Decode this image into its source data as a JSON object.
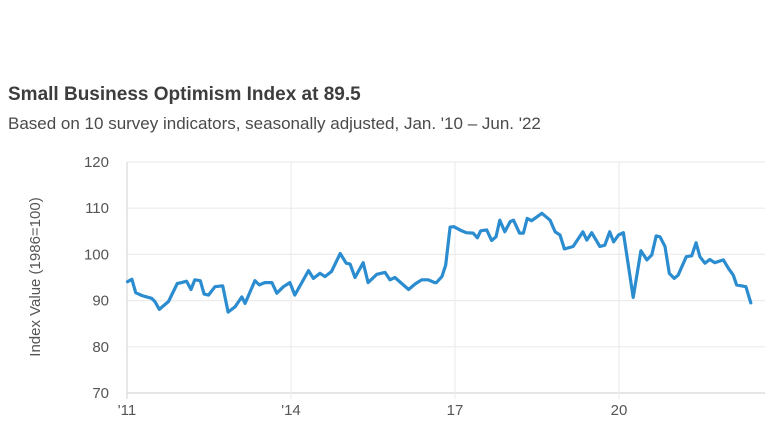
{
  "chart_data": {
    "type": "line",
    "title": "Small Business Optimism Index at 89.5",
    "subtitle": "Based on 10 survey indicators, seasonally adjusted, Jan. '10 – Jun. '22",
    "xlabel": "",
    "ylabel": "Index Value (1986=100)",
    "xlim": [
      2011,
      2022.45
    ],
    "ylim": [
      70,
      120
    ],
    "yticks": [
      70,
      80,
      90,
      100,
      110,
      120
    ],
    "xticks": [
      {
        "value": 2011,
        "label": "'11"
      },
      {
        "value": 2014,
        "label": "'14"
      },
      {
        "value": 2017,
        "label": "17"
      },
      {
        "value": 2020,
        "label": "20"
      }
    ],
    "grid": true,
    "line_color": "#2b8cd0",
    "x": [
      2011.01,
      2011.09,
      2011.16,
      2011.27,
      2011.36,
      2011.45,
      2011.51,
      2011.59,
      2011.76,
      2011.92,
      2012.0,
      2012.09,
      2012.17,
      2012.24,
      2012.34,
      2012.41,
      2012.49,
      2012.61,
      2012.75,
      2012.85,
      2012.98,
      2013.1,
      2013.16,
      2013.34,
      2013.42,
      2013.52,
      2013.65,
      2013.74,
      2013.86,
      2013.98,
      2014.07,
      2014.32,
      2014.41,
      2014.53,
      2014.62,
      2014.74,
      2014.9,
      2015.01,
      2015.08,
      2015.17,
      2015.32,
      2015.41,
      2015.57,
      2015.72,
      2015.81,
      2015.9,
      2016.15,
      2016.27,
      2016.39,
      2016.51,
      2016.63,
      2016.66,
      2016.76,
      2016.83,
      2016.91,
      2016.98,
      2017.12,
      2017.21,
      2017.33,
      2017.41,
      2017.47,
      2017.58,
      2017.67,
      2017.75,
      2017.82,
      2017.91,
      2018.01,
      2018.07,
      2018.18,
      2018.25,
      2018.32,
      2018.4,
      2018.59,
      2018.74,
      2018.83,
      2018.92,
      2019.0,
      2019.16,
      2019.34,
      2019.41,
      2019.5,
      2019.65,
      2019.74,
      2019.83,
      2019.9,
      2019.99,
      2020.08,
      2020.26,
      2020.4,
      2020.51,
      2020.6,
      2020.68,
      2020.75,
      2020.84,
      2020.92,
      2021.01,
      2021.08,
      2021.23,
      2021.33,
      2021.41,
      2021.48,
      2021.57,
      2021.66,
      2021.75,
      2021.91,
      2022.0,
      2022.09,
      2022.15,
      2022.32,
      2022.41
    ],
    "values": [
      94.1,
      94.6,
      91.7,
      91.1,
      90.8,
      90.5,
      89.8,
      88.1,
      89.8,
      93.7,
      93.9,
      94.2,
      92.4,
      94.5,
      94.3,
      91.4,
      91.2,
      93.0,
      93.2,
      87.5,
      88.7,
      90.8,
      89.4,
      94.3,
      93.4,
      93.9,
      93.9,
      91.6,
      93.0,
      93.9,
      91.2,
      96.5,
      94.8,
      95.9,
      95.2,
      96.3,
      100.2,
      98.1,
      97.9,
      95.0,
      98.2,
      93.9,
      95.7,
      96.1,
      94.5,
      95.0,
      92.4,
      93.6,
      94.5,
      94.5,
      93.9,
      93.9,
      95.2,
      97.7,
      105.9,
      106.0,
      105.1,
      104.7,
      104.6,
      103.6,
      105.1,
      105.3,
      103.0,
      103.8,
      107.4,
      104.9,
      107.1,
      107.4,
      104.6,
      104.6,
      107.8,
      107.3,
      108.9,
      107.4,
      104.9,
      104.2,
      101.2,
      101.7,
      104.9,
      103.1,
      104.7,
      101.7,
      102.0,
      104.9,
      102.7,
      104.2,
      104.7,
      90.7,
      100.8,
      98.8,
      99.9,
      104.0,
      103.8,
      101.7,
      95.9,
      94.8,
      95.5,
      99.5,
      99.7,
      102.5,
      99.5,
      98.1,
      98.9,
      98.2,
      98.8,
      97.0,
      95.5,
      93.4,
      93.0,
      89.5
    ]
  }
}
